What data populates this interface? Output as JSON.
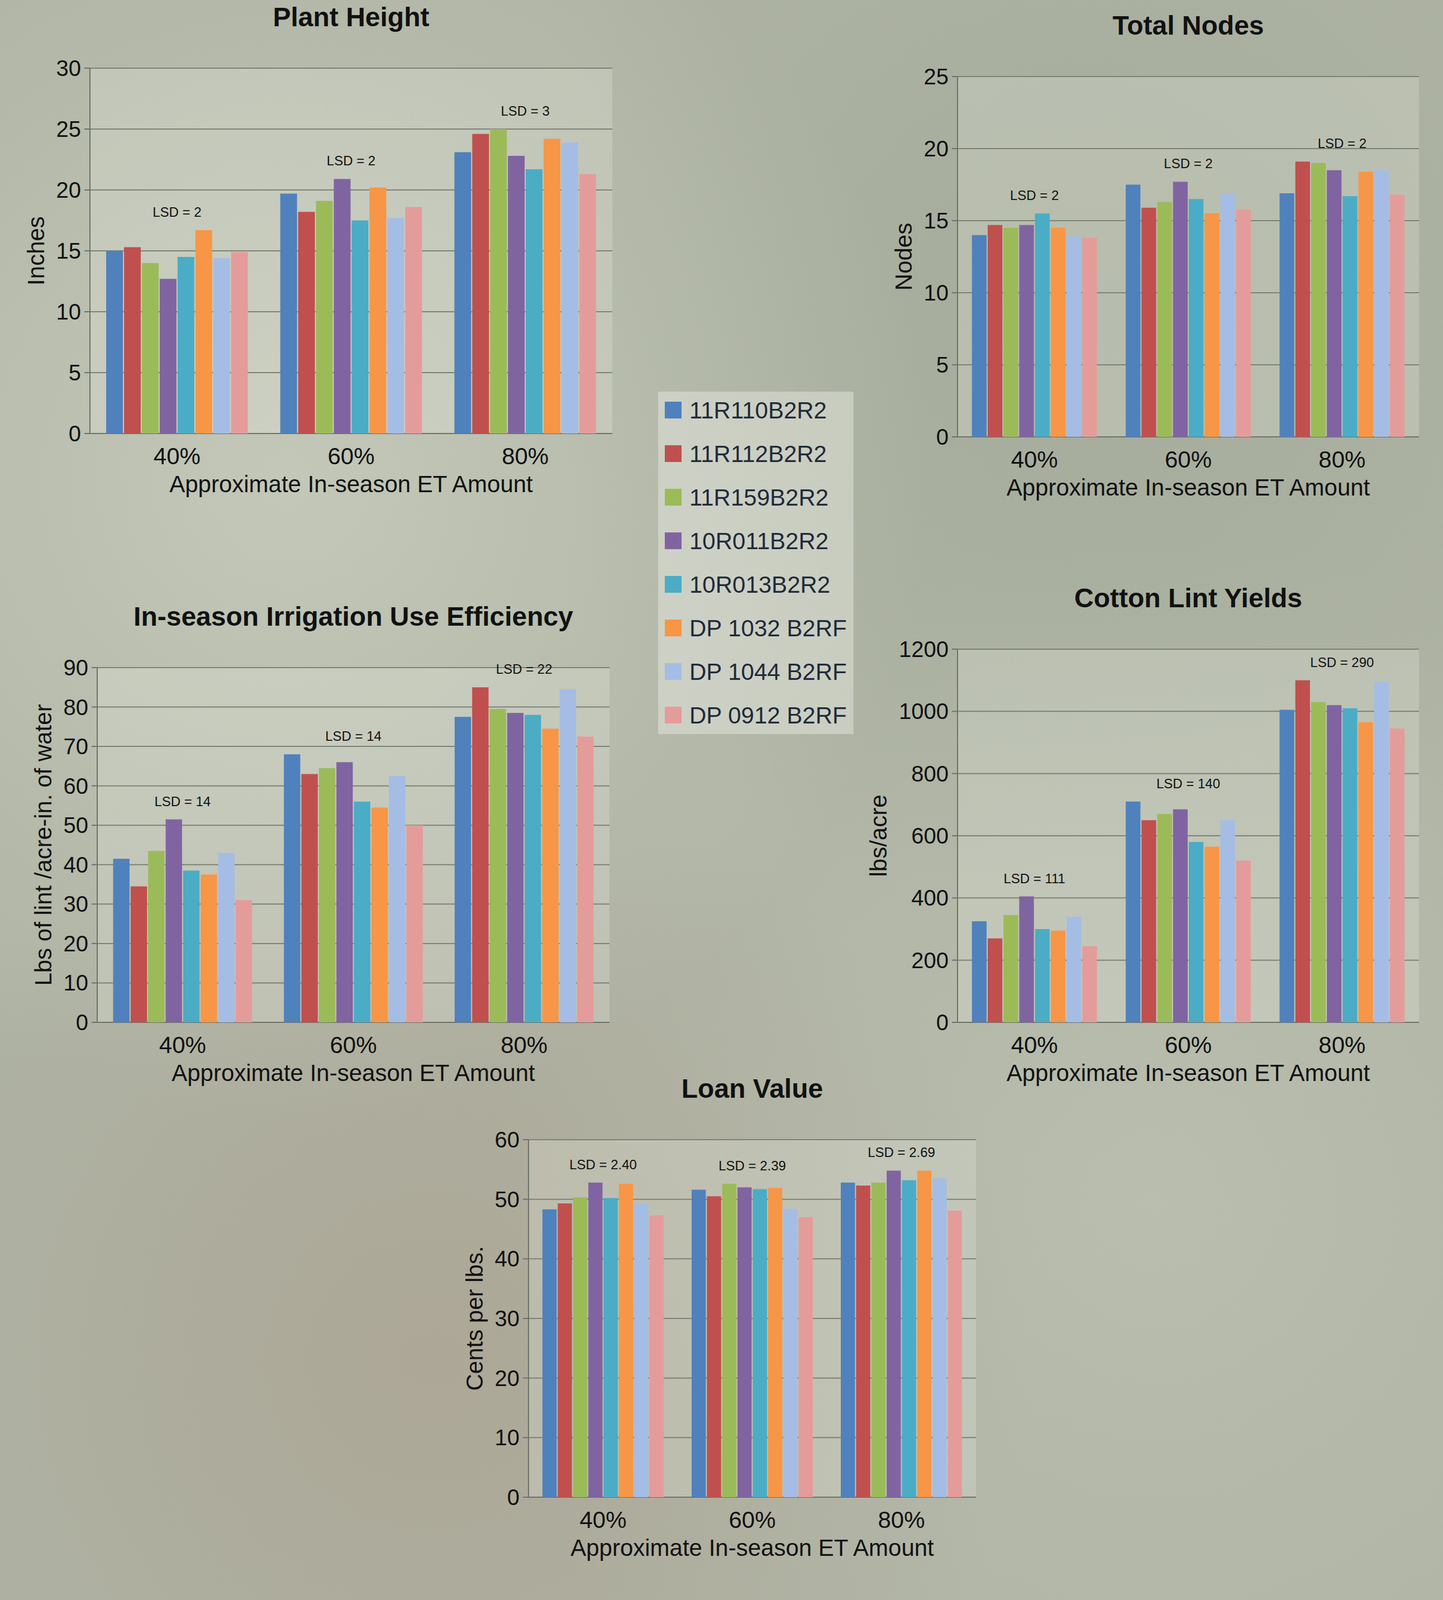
{
  "chart_data": [
    {
      "type": "bar",
      "title": "Plant Height",
      "x_label": "Approximate In-season ET Amount",
      "y_label": "Inches",
      "categories": [
        "40%",
        "60%",
        "80%"
      ],
      "series": [
        {
          "name": "11R110B2R2",
          "color": "#4f81bd",
          "values": [
            15.0,
            19.7,
            23.1
          ]
        },
        {
          "name": "11R112B2R2",
          "color": "#c0504d",
          "values": [
            15.3,
            18.2,
            24.6
          ]
        },
        {
          "name": "11R159B2R2",
          "color": "#9bbb59",
          "values": [
            14.0,
            19.1,
            25.0
          ]
        },
        {
          "name": "10R011B2R2",
          "color": "#8064a2",
          "values": [
            12.7,
            20.9,
            22.8
          ]
        },
        {
          "name": "10R013B2R2",
          "color": "#4bacc6",
          "values": [
            14.5,
            17.5,
            21.7
          ]
        },
        {
          "name": "DP 1032 B2RF",
          "color": "#f79646",
          "values": [
            16.7,
            20.2,
            24.2
          ]
        },
        {
          "name": "DP 1044 B2RF",
          "color": "#a5bde4",
          "values": [
            14.4,
            17.7,
            23.9
          ]
        },
        {
          "name": "DP 0912 B2RF",
          "color": "#e49c9a",
          "values": [
            14.9,
            18.6,
            21.3
          ]
        }
      ],
      "ylim": [
        0,
        30
      ],
      "yticks": [
        0,
        5,
        10,
        15,
        20,
        25,
        30
      ],
      "grid": true,
      "legend": "right",
      "annotations": [
        "LSD = 2",
        "LSD = 2",
        "LSD = 3"
      ]
    },
    {
      "type": "bar",
      "title": "Total Nodes",
      "x_label": "Approximate In-season ET Amount",
      "y_label": "Nodes",
      "categories": [
        "40%",
        "60%",
        "80%"
      ],
      "series": [
        {
          "name": "11R110B2R2",
          "color": "#4f81bd",
          "values": [
            14.0,
            17.5,
            16.9
          ]
        },
        {
          "name": "11R112B2R2",
          "color": "#c0504d",
          "values": [
            14.7,
            15.9,
            19.1
          ]
        },
        {
          "name": "11R159B2R2",
          "color": "#9bbb59",
          "values": [
            14.5,
            16.3,
            19.0
          ]
        },
        {
          "name": "10R011B2R2",
          "color": "#8064a2",
          "values": [
            14.7,
            17.7,
            18.5
          ]
        },
        {
          "name": "10R013B2R2",
          "color": "#4bacc6",
          "values": [
            15.5,
            16.5,
            16.7
          ]
        },
        {
          "name": "DP 1032 B2RF",
          "color": "#f79646",
          "values": [
            14.5,
            15.5,
            18.4
          ]
        },
        {
          "name": "DP 1044 B2RF",
          "color": "#a5bde4",
          "values": [
            13.9,
            16.9,
            18.5
          ]
        },
        {
          "name": "DP 0912 B2RF",
          "color": "#e49c9a",
          "values": [
            13.8,
            15.8,
            16.8
          ]
        }
      ],
      "ylim": [
        0,
        25
      ],
      "yticks": [
        0,
        5,
        10,
        15,
        20,
        25
      ],
      "grid": true,
      "annotations": [
        "LSD = 2",
        "LSD = 2",
        "LSD = 2"
      ]
    },
    {
      "type": "bar",
      "title": "In-season Irrigation Use Efficiency",
      "x_label": "Approximate In-season ET Amount",
      "y_label": "Lbs of lint /acre-in. of water",
      "categories": [
        "40%",
        "60%",
        "80%"
      ],
      "series": [
        {
          "name": "11R110B2R2",
          "color": "#4f81bd",
          "values": [
            41.5,
            68.0,
            77.5
          ]
        },
        {
          "name": "11R112B2R2",
          "color": "#c0504d",
          "values": [
            34.5,
            63.0,
            85.0
          ]
        },
        {
          "name": "11R159B2R2",
          "color": "#9bbb59",
          "values": [
            43.5,
            64.5,
            79.5
          ]
        },
        {
          "name": "10R011B2R2",
          "color": "#8064a2",
          "values": [
            51.5,
            66.0,
            78.5
          ]
        },
        {
          "name": "10R013B2R2",
          "color": "#4bacc6",
          "values": [
            38.5,
            56.0,
            78.0
          ]
        },
        {
          "name": "DP 1032 B2RF",
          "color": "#f79646",
          "values": [
            37.5,
            54.5,
            74.5
          ]
        },
        {
          "name": "DP 1044 B2RF",
          "color": "#a5bde4",
          "values": [
            43.0,
            62.5,
            84.5
          ]
        },
        {
          "name": "DP 0912 B2RF",
          "color": "#e49c9a",
          "values": [
            31.0,
            50.0,
            72.5
          ]
        }
      ],
      "ylim": [
        0,
        90
      ],
      "yticks": [
        0,
        10,
        20,
        30,
        40,
        50,
        60,
        70,
        80,
        90
      ],
      "grid": true,
      "annotations": [
        "LSD =  14",
        "LSD = 14",
        "LSD = 22"
      ]
    },
    {
      "type": "bar",
      "title": "Cotton Lint Yields",
      "x_label": "Approximate In-season ET Amount",
      "y_label": "lbs/acre",
      "categories": [
        "40%",
        "60%",
        "80%"
      ],
      "series": [
        {
          "name": "11R110B2R2",
          "color": "#4f81bd",
          "values": [
            325,
            710,
            1005
          ]
        },
        {
          "name": "11R112B2R2",
          "color": "#c0504d",
          "values": [
            270,
            650,
            1100
          ]
        },
        {
          "name": "11R159B2R2",
          "color": "#9bbb59",
          "values": [
            345,
            670,
            1030
          ]
        },
        {
          "name": "10R011B2R2",
          "color": "#8064a2",
          "values": [
            405,
            685,
            1020
          ]
        },
        {
          "name": "10R013B2R2",
          "color": "#4bacc6",
          "values": [
            300,
            580,
            1010
          ]
        },
        {
          "name": "DP 1032 B2RF",
          "color": "#f79646",
          "values": [
            295,
            565,
            965
          ]
        },
        {
          "name": "DP 1044 B2RF",
          "color": "#a5bde4",
          "values": [
            340,
            650,
            1095
          ]
        },
        {
          "name": "DP 0912 B2RF",
          "color": "#e49c9a",
          "values": [
            245,
            520,
            945
          ]
        }
      ],
      "ylim": [
        0,
        1200
      ],
      "yticks": [
        0,
        200,
        400,
        600,
        800,
        1000,
        1200
      ],
      "grid": true,
      "annotations": [
        "LSD = 111",
        "LSD =  140",
        "LSD = 290"
      ]
    },
    {
      "type": "bar",
      "title": "Loan Value",
      "x_label": "Approximate In-season ET Amount",
      "y_label": "Cents per lbs.",
      "categories": [
        "40%",
        "60%",
        "80%"
      ],
      "series": [
        {
          "name": "11R110B2R2",
          "color": "#4f81bd",
          "values": [
            48.3,
            51.6,
            52.8
          ]
        },
        {
          "name": "11R112B2R2",
          "color": "#c0504d",
          "values": [
            49.3,
            50.5,
            52.3
          ]
        },
        {
          "name": "11R159B2R2",
          "color": "#9bbb59",
          "values": [
            50.3,
            52.6,
            52.8
          ]
        },
        {
          "name": "10R011B2R2",
          "color": "#8064a2",
          "values": [
            52.8,
            52.0,
            54.8
          ]
        },
        {
          "name": "10R013B2R2",
          "color": "#4bacc6",
          "values": [
            50.2,
            51.7,
            53.2
          ]
        },
        {
          "name": "DP 1032 B2RF",
          "color": "#f79646",
          "values": [
            52.6,
            51.9,
            54.8
          ]
        },
        {
          "name": "DP 1044 B2RF",
          "color": "#a5bde4",
          "values": [
            49.3,
            48.4,
            53.5
          ]
        },
        {
          "name": "DP 0912 B2RF",
          "color": "#e49c9a",
          "values": [
            47.3,
            47.0,
            48.1
          ]
        }
      ],
      "ylim": [
        0,
        60
      ],
      "yticks": [
        0,
        10,
        20,
        30,
        40,
        50,
        60
      ],
      "grid": true,
      "annotations": [
        "LSD = 2.40",
        "LSD =  2.39",
        "LSD = 2.69"
      ]
    }
  ]
}
